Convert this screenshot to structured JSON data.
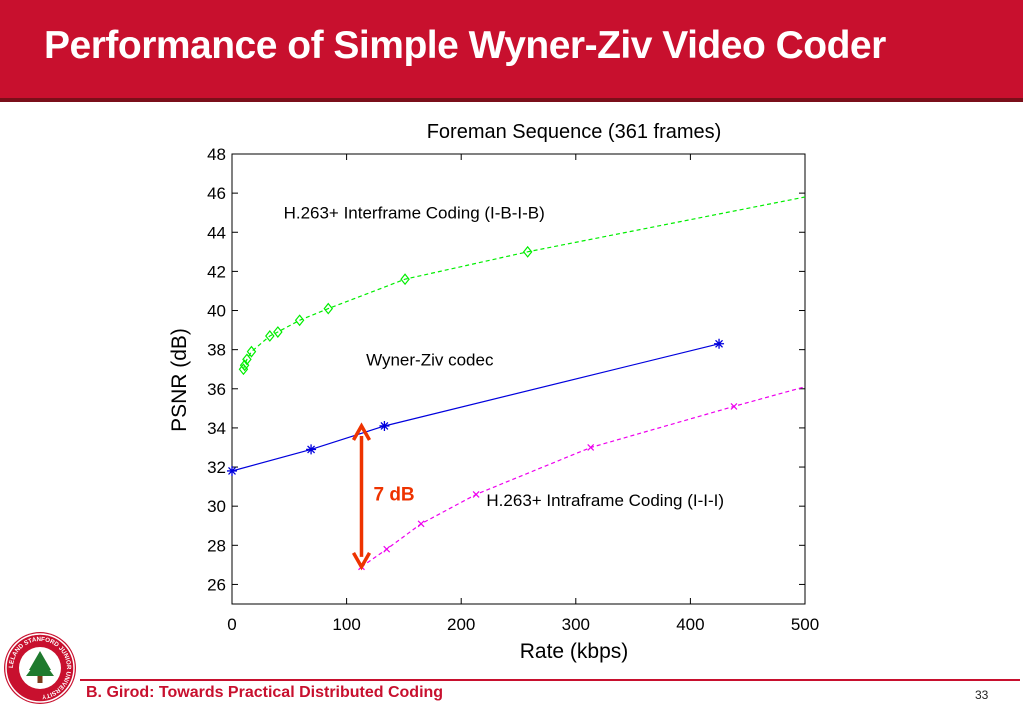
{
  "slide": {
    "title": "Performance of Simple Wyner-Ziv Video Coder",
    "footer": "B. Girod: Towards Practical Distributed Coding",
    "page_number": "33",
    "accent_color": "#c8102e",
    "seal_icon": "university-seal-icon",
    "seal_text": "LELAND STANFORD JUNIOR UNIVERSITY"
  },
  "chart_data": {
    "type": "line",
    "title": "Foreman Sequence (361 frames)",
    "xlabel": "Rate (kbps)",
    "ylabel": "PSNR (dB)",
    "xlim": [
      0,
      500
    ],
    "ylim": [
      25,
      48
    ],
    "xticks": [
      0,
      100,
      200,
      300,
      400,
      500
    ],
    "yticks": [
      26,
      28,
      30,
      32,
      34,
      36,
      38,
      40,
      42,
      44,
      46,
      48
    ],
    "grid": false,
    "series": [
      {
        "name": "H.263+ Interframe Coding (I-B-I-B)",
        "color": "#00ee00",
        "dash": "dashed",
        "marker": "diamond",
        "x": [
          10,
          11,
          13,
          17,
          33,
          40,
          59,
          84,
          151,
          258,
          500
        ],
        "y": [
          37.0,
          37.2,
          37.5,
          37.9,
          38.7,
          38.9,
          39.5,
          40.1,
          41.6,
          43.0,
          45.8
        ],
        "marker_count": 10
      },
      {
        "name": "Wyner-Ziv codec",
        "color": "#0000dd",
        "dash": "solid",
        "marker": "star",
        "x": [
          0,
          69,
          133,
          425
        ],
        "y": [
          31.8,
          32.9,
          34.1,
          38.3
        ],
        "marker_count": 4
      },
      {
        "name": "H.263+ Intraframe Coding (I-I-I)",
        "color": "#ee00ee",
        "dash": "dashed",
        "marker": "x",
        "x": [
          113,
          135,
          165,
          213,
          313,
          438,
          500
        ],
        "y": [
          26.9,
          27.8,
          29.1,
          30.6,
          33.0,
          35.1,
          36.1
        ],
        "marker_count": 6
      }
    ],
    "annotations": [
      {
        "text": "H.263+ Interframe Coding (I-B-I-B)",
        "x": 45,
        "y": 44.7
      },
      {
        "text": "Wyner-Ziv codec",
        "x": 117,
        "y": 37.2
      },
      {
        "text": "H.263+ Intraframe Coding (I-I-I)",
        "x": 222,
        "y": 30.0
      }
    ],
    "difference_arrow": {
      "label": "7 dB",
      "x": 113,
      "y_from": 34.1,
      "y_to": 26.9,
      "color": "#ee3300"
    }
  }
}
